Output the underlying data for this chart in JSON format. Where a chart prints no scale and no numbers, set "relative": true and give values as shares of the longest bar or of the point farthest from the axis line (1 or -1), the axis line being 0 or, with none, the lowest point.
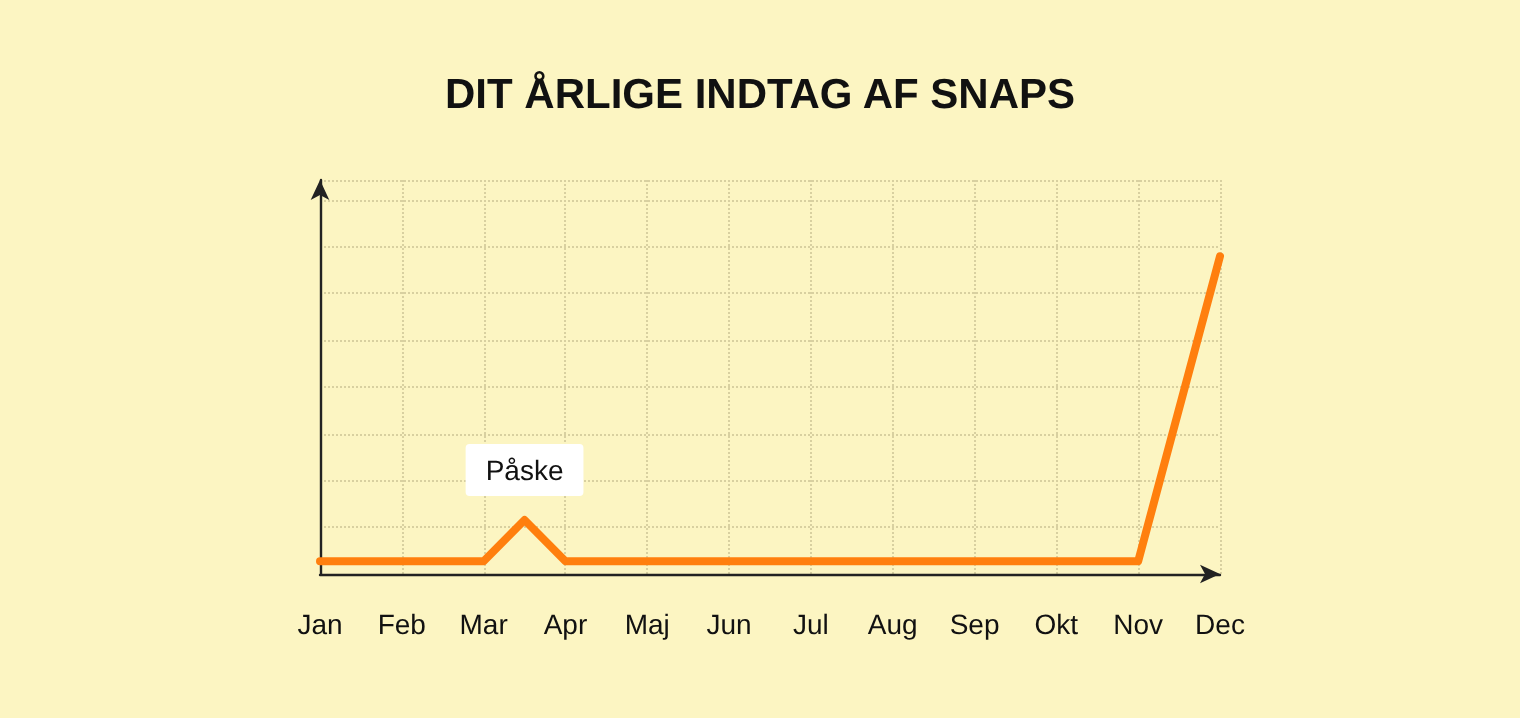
{
  "chart_data": {
    "type": "line",
    "title": "DIT ÅRLIGE INDTAG AF SNAPS",
    "relative": true,
    "categories": [
      "Jan",
      null,
      "Feb",
      null,
      "Mar",
      null,
      "Apr",
      null,
      "Maj",
      null,
      "Jun",
      null,
      "Jul",
      null,
      "Aug",
      null,
      "Sep",
      null,
      "Okt",
      null,
      "Nov",
      null,
      "Dec"
    ],
    "series": [
      {
        "color": "#ff7f0e",
        "values": [
          0.04,
          0.04,
          0.04,
          0.04,
          0.04,
          0.17,
          0.04,
          0.04,
          0.04,
          0.04,
          0.04,
          0.04,
          0.04,
          0.04,
          0.04,
          0.04,
          0.04,
          0.04,
          0.04,
          0.04,
          0.04,
          null,
          1
        ]
      }
    ],
    "annotations": [
      {
        "text": "Påske",
        "y": 0.17
      }
    ],
    "grid": true,
    "marker": "none",
    "line_style": "solid"
  }
}
